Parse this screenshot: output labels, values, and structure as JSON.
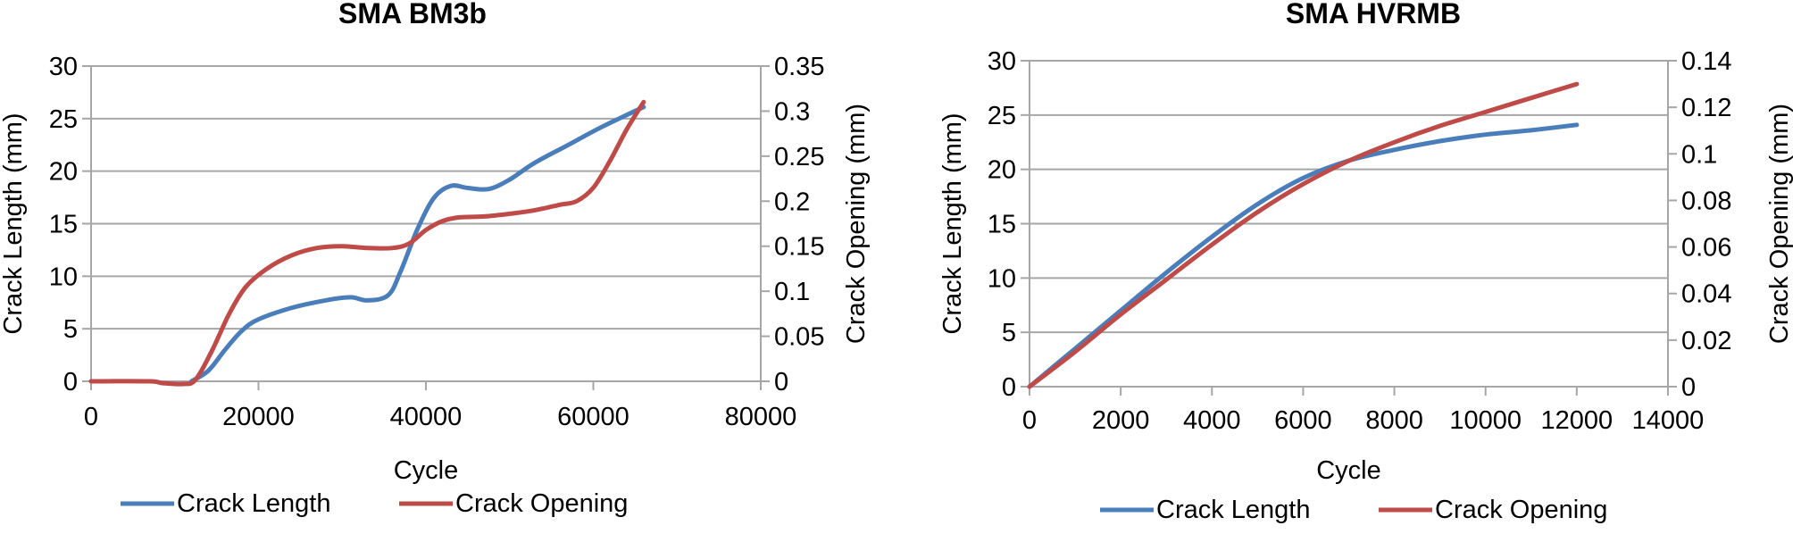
{
  "chart_data": [
    {
      "type": "line",
      "title": "SMA BM3b",
      "xlabel": "Cycle",
      "ylabel": "Crack Length (mm)",
      "y2label": "Crack Opening (mm)",
      "xlim": [
        0,
        80000
      ],
      "ylim": [
        0,
        30
      ],
      "y2lim": [
        0,
        0.35
      ],
      "xticks": [
        "0",
        "20000",
        "40000",
        "60000",
        "80000"
      ],
      "yticks": [
        "0",
        "5",
        "10",
        "15",
        "20",
        "25",
        "30"
      ],
      "y2ticks": [
        "0",
        "0.05",
        "0.1",
        "0.15",
        "0.2",
        "0.25",
        "0.3",
        "0.35"
      ],
      "grid": true,
      "legend_position": "bottom",
      "series": [
        {
          "name": "Crack Length",
          "axis": "left",
          "color": "#4a7ebb",
          "x": [
            12000,
            14000,
            16000,
            18000,
            20000,
            24000,
            28000,
            31000,
            33000,
            35500,
            37000,
            39000,
            41000,
            43000,
            45000,
            47500,
            50000,
            53000,
            57000,
            61000,
            66000
          ],
          "y": [
            0,
            1.0,
            3.0,
            4.8,
            5.9,
            7.0,
            7.7,
            8.0,
            7.7,
            8.2,
            10.5,
            14.5,
            17.5,
            18.6,
            18.4,
            18.3,
            19.2,
            20.8,
            22.5,
            24.2,
            26.1
          ]
        },
        {
          "name": "Crack Opening",
          "axis": "right",
          "color": "#be4b48",
          "x": [
            0,
            7000,
            8500,
            11000,
            12500,
            14500,
            16500,
            18500,
            21000,
            24000,
            27000,
            30000,
            33000,
            36000,
            38000,
            40000,
            42000,
            44000,
            47000,
            50000,
            53000,
            56000,
            58000,
            60000,
            62000,
            64000,
            66000
          ],
          "y": [
            0,
            0,
            -0.002,
            -0.003,
            0.002,
            0.035,
            0.075,
            0.105,
            0.125,
            0.14,
            0.148,
            0.15,
            0.148,
            0.148,
            0.153,
            0.168,
            0.178,
            0.182,
            0.183,
            0.186,
            0.19,
            0.196,
            0.2,
            0.215,
            0.245,
            0.28,
            0.31
          ]
        }
      ]
    },
    {
      "type": "line",
      "title": "SMA HVRMB",
      "xlabel": "Cycle",
      "ylabel": "Crack Length (mm)",
      "y2label": "Crack Opening (mm)",
      "xlim": [
        0,
        14000
      ],
      "ylim": [
        0,
        30
      ],
      "y2lim": [
        0,
        0.14
      ],
      "xticks": [
        "0",
        "2000",
        "4000",
        "6000",
        "8000",
        "10000",
        "12000",
        "14000"
      ],
      "yticks": [
        "0",
        "5",
        "10",
        "15",
        "20",
        "25",
        "30"
      ],
      "y2ticks": [
        "0",
        "0.02",
        "0.04",
        "0.06",
        "0.08",
        "0.1",
        "0.12",
        "0.14"
      ],
      "grid": true,
      "legend_position": "bottom",
      "series": [
        {
          "name": "Crack Length",
          "axis": "left",
          "color": "#4a7ebb",
          "x": [
            0,
            1000,
            2000,
            3000,
            4000,
            5000,
            6000,
            7000,
            8000,
            9000,
            10000,
            11000,
            12000
          ],
          "y": [
            0,
            3.5,
            7.0,
            10.5,
            13.8,
            16.8,
            19.2,
            20.8,
            21.8,
            22.6,
            23.2,
            23.6,
            24.1
          ]
        },
        {
          "name": "Crack Opening",
          "axis": "right",
          "color": "#be4b48",
          "x": [
            0,
            1000,
            2000,
            3000,
            4000,
            5000,
            6000,
            7000,
            8000,
            9000,
            10000,
            11000,
            12000
          ],
          "y": [
            0,
            0.015,
            0.031,
            0.046,
            0.061,
            0.075,
            0.087,
            0.097,
            0.105,
            0.112,
            0.118,
            0.124,
            0.13
          ]
        }
      ]
    }
  ]
}
